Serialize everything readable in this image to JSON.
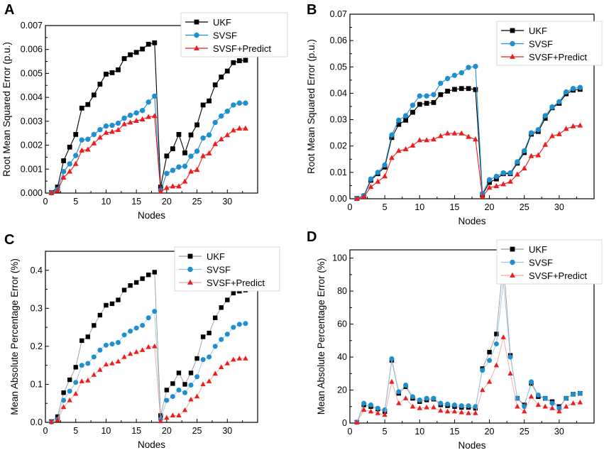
{
  "colors": {
    "ukf": "#000000",
    "svsf": "#1e8fcf",
    "predict": "#ee1c1c",
    "ukf_line_faint": "#9a9a9a",
    "svsf_line_faint": "#9cc6e0",
    "predict_line_faint": "#f3a3a3",
    "axis": "#000000"
  },
  "chart_data": [
    {
      "panel": "A",
      "type": "line",
      "xlabel": "Nodes",
      "ylabel": "Root Mean Squared Error (p.u.)",
      "xlim": [
        0,
        35
      ],
      "ylim": [
        0,
        0.007
      ],
      "xticks": [
        0,
        5,
        10,
        15,
        20,
        25,
        30
      ],
      "xtick_labels": [
        "0",
        "5",
        "10",
        "15",
        "20",
        "25",
        "30"
      ],
      "yticks": [
        0,
        0.001,
        0.002,
        0.003,
        0.004,
        0.005,
        0.006,
        0.007
      ],
      "ytick_labels": [
        "0.000",
        "0.001",
        "0.002",
        "0.003",
        "0.004",
        "0.005",
        "0.006",
        "0.007"
      ],
      "legend_position": "top-right",
      "x": [
        1,
        2,
        3,
        4,
        5,
        6,
        7,
        8,
        9,
        10,
        11,
        12,
        13,
        14,
        15,
        16,
        17,
        18,
        19,
        20,
        21,
        22,
        23,
        24,
        25,
        26,
        27,
        28,
        29,
        30,
        31,
        32,
        33
      ],
      "series": [
        {
          "name": "UKF",
          "key": "ukf",
          "marker": "square",
          "faint": false,
          "values": [
            2e-05,
            0.00025,
            0.00135,
            0.00192,
            0.00245,
            0.00355,
            0.0037,
            0.0041,
            0.00455,
            0.00497,
            0.00503,
            0.00515,
            0.00562,
            0.00578,
            0.00588,
            0.00602,
            0.00622,
            0.00628,
            0.00025,
            0.00155,
            0.00185,
            0.00245,
            0.00168,
            0.00243,
            0.00285,
            0.00368,
            0.00385,
            0.00452,
            0.00485,
            0.0051,
            0.00545,
            0.00553,
            0.00555
          ]
        },
        {
          "name": "SVSF",
          "key": "svsf",
          "marker": "circle",
          "faint": false,
          "values": [
            1e-05,
            0.00015,
            0.0009,
            0.00122,
            0.00157,
            0.00222,
            0.00225,
            0.00245,
            0.00265,
            0.0028,
            0.00283,
            0.00292,
            0.00313,
            0.00325,
            0.00335,
            0.00345,
            0.0038,
            0.00405,
            0.00012,
            0.00082,
            0.00095,
            0.00109,
            0.00112,
            0.00154,
            0.00175,
            0.0023,
            0.00243,
            0.00295,
            0.00322,
            0.00342,
            0.00368,
            0.00376,
            0.00376
          ]
        },
        {
          "name": "SVSF+Predict",
          "key": "predict",
          "marker": "triangle",
          "faint": false,
          "values": [
            1e-05,
            0.0001,
            0.00065,
            0.0009,
            0.00122,
            0.00178,
            0.00182,
            0.00208,
            0.00232,
            0.00252,
            0.00256,
            0.00264,
            0.00288,
            0.00295,
            0.00302,
            0.00308,
            0.00318,
            0.00322,
            6e-05,
            0.00022,
            0.00028,
            0.00028,
            0.00048,
            0.0009,
            0.00097,
            0.00155,
            0.00166,
            0.00205,
            0.00225,
            0.00242,
            0.00262,
            0.0027,
            0.0027
          ]
        }
      ]
    },
    {
      "panel": "B",
      "type": "line",
      "xlabel": "Nodes",
      "ylabel": "Root Mean Squared Error (p.u.)",
      "xlim": [
        0,
        35
      ],
      "ylim": [
        0,
        0.07
      ],
      "xticks": [
        0,
        5,
        10,
        15,
        20,
        25,
        30
      ],
      "xtick_labels": [
        "0",
        "5",
        "10",
        "15",
        "20",
        "25",
        "30"
      ],
      "yticks": [
        0,
        0.01,
        0.02,
        0.03,
        0.04,
        0.05,
        0.06,
        0.07
      ],
      "ytick_labels": [
        "0.00",
        "0.01",
        "0.02",
        "0.03",
        "0.04",
        "0.05",
        "0.06",
        "0.07"
      ],
      "legend_position": "top-right",
      "x": [
        1,
        2,
        3,
        4,
        5,
        6,
        7,
        8,
        9,
        10,
        11,
        12,
        13,
        14,
        15,
        16,
        17,
        18,
        19,
        20,
        21,
        22,
        23,
        24,
        25,
        26,
        27,
        28,
        29,
        30,
        31,
        32,
        33
      ],
      "series": [
        {
          "name": "UKF",
          "key": "ukf",
          "marker": "square",
          "faint": false,
          "values": [
            0.0001,
            0.001,
            0.007,
            0.0095,
            0.012,
            0.0232,
            0.0282,
            0.0298,
            0.0328,
            0.0358,
            0.0362,
            0.0365,
            0.0395,
            0.0408,
            0.0415,
            0.0418,
            0.0418,
            0.0414,
            0.0015,
            0.0062,
            0.0075,
            0.0095,
            0.0095,
            0.0135,
            0.0175,
            0.0245,
            0.0255,
            0.0305,
            0.0345,
            0.0362,
            0.0398,
            0.0412,
            0.0415
          ]
        },
        {
          "name": "SVSF",
          "key": "svsf",
          "marker": "circle",
          "faint": false,
          "values": [
            0.0001,
            0.0012,
            0.0075,
            0.01,
            0.0128,
            0.0242,
            0.0298,
            0.0315,
            0.0355,
            0.039,
            0.039,
            0.0395,
            0.0438,
            0.0456,
            0.0468,
            0.0478,
            0.0498,
            0.0502,
            0.002,
            0.0072,
            0.0085,
            0.0098,
            0.0098,
            0.014,
            0.0182,
            0.025,
            0.0262,
            0.0315,
            0.0348,
            0.0368,
            0.0405,
            0.0418,
            0.0422
          ]
        },
        {
          "name": "SVSF+Predict",
          "key": "predict",
          "marker": "triangle",
          "faint": false,
          "values": [
            0.0001,
            0.0008,
            0.0045,
            0.0065,
            0.0085,
            0.0155,
            0.0182,
            0.0188,
            0.0202,
            0.0222,
            0.0222,
            0.0225,
            0.0238,
            0.0248,
            0.0248,
            0.0248,
            0.0235,
            0.0225,
            0.0008,
            0.0042,
            0.0048,
            0.0055,
            0.0065,
            0.0092,
            0.0115,
            0.0162,
            0.0165,
            0.0205,
            0.0238,
            0.0245,
            0.0265,
            0.0275,
            0.0278
          ]
        }
      ]
    },
    {
      "panel": "C",
      "type": "line",
      "xlabel": "Nodes",
      "ylabel": "Mean Absolute Percentage Error (%)",
      "xlim": [
        0,
        35
      ],
      "ylim": [
        0,
        0.45
      ],
      "xticks": [
        0,
        5,
        10,
        15,
        20,
        25,
        30
      ],
      "xtick_labels": [
        "0",
        "5",
        "10",
        "15",
        "20",
        "25",
        "30"
      ],
      "yticks": [
        0,
        0.1,
        0.2,
        0.3,
        0.4
      ],
      "ytick_labels": [
        "0.0",
        "0.1",
        "0.2",
        "0.3",
        "0.4"
      ],
      "legend_position": "top-right",
      "x": [
        1,
        2,
        3,
        4,
        5,
        6,
        7,
        8,
        9,
        10,
        11,
        12,
        13,
        14,
        15,
        16,
        17,
        18,
        19,
        20,
        21,
        22,
        23,
        24,
        25,
        26,
        27,
        28,
        29,
        30,
        31,
        32,
        33
      ],
      "series": [
        {
          "name": "UKF",
          "key": "ukf",
          "marker": "square",
          "faint": true,
          "values": [
            0.002,
            0.015,
            0.078,
            0.112,
            0.145,
            0.215,
            0.225,
            0.255,
            0.282,
            0.308,
            0.312,
            0.322,
            0.348,
            0.36,
            0.368,
            0.378,
            0.388,
            0.395,
            0.018,
            0.085,
            0.102,
            0.13,
            0.1,
            0.13,
            0.168,
            0.225,
            0.235,
            0.275,
            0.302,
            0.322,
            0.34,
            0.345,
            0.348
          ]
        },
        {
          "name": "SVSF",
          "key": "svsf",
          "marker": "circle",
          "faint": true,
          "values": [
            0.001,
            0.008,
            0.058,
            0.082,
            0.105,
            0.15,
            0.155,
            0.172,
            0.19,
            0.203,
            0.206,
            0.21,
            0.23,
            0.24,
            0.248,
            0.255,
            0.275,
            0.292,
            0.008,
            0.058,
            0.068,
            0.085,
            0.078,
            0.098,
            0.12,
            0.165,
            0.172,
            0.2,
            0.218,
            0.232,
            0.25,
            0.258,
            0.26
          ]
        },
        {
          "name": "SVSF+Predict",
          "key": "predict",
          "marker": "triangle",
          "faint": true,
          "values": [
            0.001,
            0.006,
            0.04,
            0.058,
            0.075,
            0.108,
            0.11,
            0.125,
            0.138,
            0.152,
            0.155,
            0.16,
            0.172,
            0.18,
            0.185,
            0.19,
            0.198,
            0.2,
            0.003,
            0.012,
            0.018,
            0.018,
            0.032,
            0.06,
            0.068,
            0.1,
            0.108,
            0.128,
            0.145,
            0.155,
            0.165,
            0.168,
            0.168
          ]
        }
      ]
    },
    {
      "panel": "D",
      "type": "line",
      "xlabel": "Nodes",
      "ylabel": "Mean Absolute Percentage Error (%)",
      "xlim": [
        0,
        35
      ],
      "ylim": [
        0,
        105
      ],
      "xticks": [
        0,
        5,
        10,
        15,
        20,
        25,
        30
      ],
      "xtick_labels": [
        "0",
        "5",
        "10",
        "15",
        "20",
        "25",
        "30"
      ],
      "yticks": [
        0,
        20,
        40,
        60,
        80,
        100
      ],
      "ytick_labels": [
        "0",
        "20",
        "40",
        "60",
        "80",
        "100"
      ],
      "legend_position": "top-right",
      "x": [
        1,
        2,
        3,
        4,
        5,
        6,
        7,
        8,
        9,
        10,
        11,
        12,
        13,
        14,
        15,
        16,
        17,
        18,
        19,
        20,
        21,
        22,
        23,
        24,
        25,
        26,
        27,
        28,
        29,
        30,
        31,
        32,
        33
      ],
      "series": [
        {
          "name": "UKF",
          "key": "ukf",
          "marker": "square",
          "faint": true,
          "values": [
            0.5,
            11,
            10,
            8.5,
            7,
            38,
            18,
            22,
            15,
            13,
            14,
            14.5,
            11,
            10.5,
            10,
            9.5,
            9.5,
            9,
            33,
            43,
            54,
            98.5,
            41,
            15,
            11,
            24,
            16,
            15,
            13,
            10,
            15,
            17.5,
            18
          ]
        },
        {
          "name": "SVSF",
          "key": "svsf",
          "marker": "circle",
          "faint": true,
          "values": [
            0.5,
            12,
            11,
            9,
            8,
            39,
            19,
            23,
            16,
            14,
            15,
            15,
            12,
            11.5,
            11,
            10.5,
            10.5,
            10,
            32,
            38,
            48,
            86,
            40,
            15,
            10,
            25,
            17,
            15,
            12,
            9,
            15,
            17.5,
            18
          ]
        },
        {
          "name": "SVSF+Predict",
          "key": "predict",
          "marker": "triangle",
          "faint": true,
          "values": [
            0.3,
            8,
            7,
            6,
            5,
            25,
            12,
            15,
            10,
            9,
            9.5,
            9.5,
            7.5,
            7,
            7,
            6.5,
            6,
            6,
            20,
            25,
            35,
            52,
            30,
            10,
            7,
            16,
            11,
            10,
            9,
            7,
            10,
            12,
            12.5
          ]
        }
      ]
    }
  ]
}
